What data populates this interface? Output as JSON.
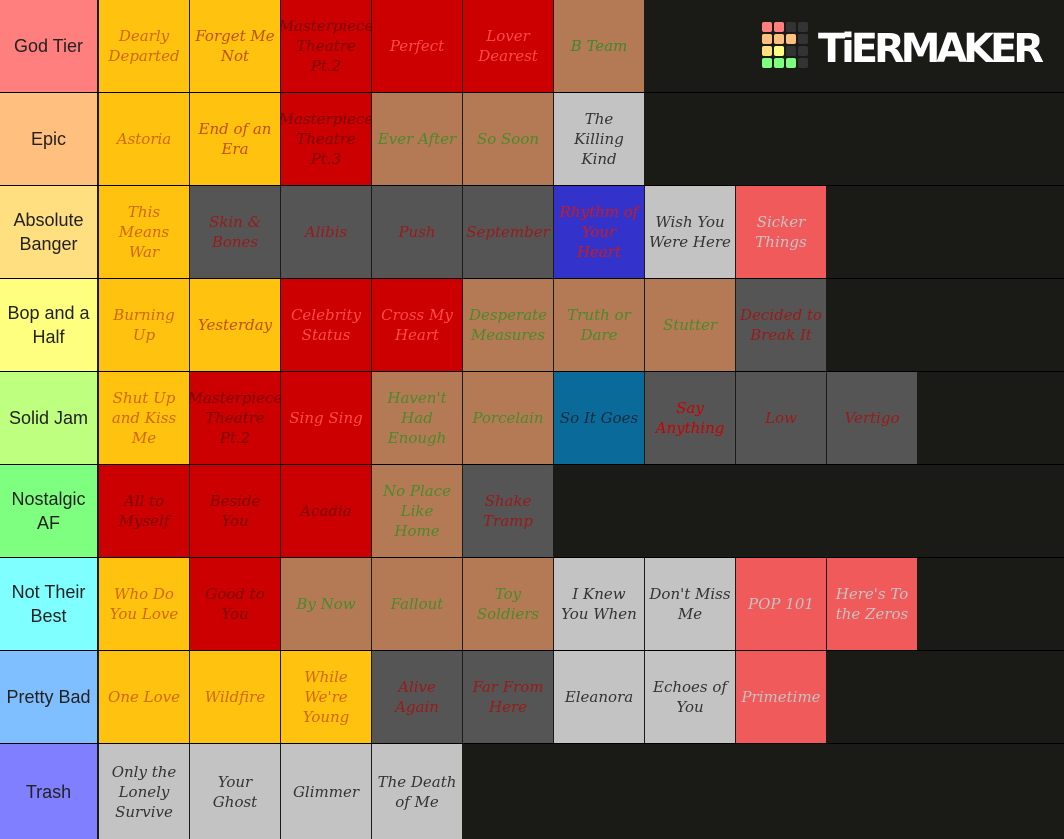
{
  "logo": "TiERMAKER",
  "tiers": [
    {
      "label": "God Tier",
      "color": "#ff7f7f",
      "items": [
        {
          "text": "Dearly Departed",
          "bg": "#ffc20e",
          "fg": "#d0680a"
        },
        {
          "text": "Forget Me Not",
          "bg": "#ffc20e",
          "fg": "#c0500a"
        },
        {
          "text": "Masterpiece Theatre Pt.2",
          "bg": "#cc0000",
          "fg": "#7a0000"
        },
        {
          "text": "Perfect",
          "bg": "#cc0000",
          "fg": "#ff4a4a"
        },
        {
          "text": "Lover Dearest",
          "bg": "#cc0000",
          "fg": "#ff4a4a"
        },
        {
          "text": "B Team",
          "bg": "#b47a55",
          "fg": "#3c8a2a"
        }
      ]
    },
    {
      "label": "Epic",
      "color": "#ffbf7f",
      "items": [
        {
          "text": "Astoria",
          "bg": "#ffc20e",
          "fg": "#d0680a"
        },
        {
          "text": "End of an Era",
          "bg": "#ffc20e",
          "fg": "#c0500a"
        },
        {
          "text": "Masterpiece Theatre Pt.3",
          "bg": "#cc0000",
          "fg": "#7a0000"
        },
        {
          "text": "Ever After",
          "bg": "#b47a55",
          "fg": "#4a8a2a"
        },
        {
          "text": "So Soon",
          "bg": "#b47a55",
          "fg": "#4a8a2a"
        },
        {
          "text": "The Killing Kind",
          "bg": "#c3c3c3",
          "fg": "#333333"
        }
      ]
    },
    {
      "label": "Absolute Banger",
      "color": "#ffdf7f",
      "items": [
        {
          "text": "This Means War",
          "bg": "#ffc20e",
          "fg": "#d0680a"
        },
        {
          "text": "Skin & Bones",
          "bg": "#555555",
          "fg": "#9a1a1a"
        },
        {
          "text": "Alibis",
          "bg": "#555555",
          "fg": "#9a1a1a"
        },
        {
          "text": "Push",
          "bg": "#555555",
          "fg": "#9a1a1a"
        },
        {
          "text": "September",
          "bg": "#555555",
          "fg": "#9a1a1a"
        },
        {
          "text": "Rhythm of Your Heart",
          "bg": "#3333cc",
          "fg": "#cc1a1a"
        },
        {
          "text": "Wish You Were Here",
          "bg": "#c3c3c3",
          "fg": "#333333"
        },
        {
          "text": "Sicker Things",
          "bg": "#f05a5a",
          "fg": "#c3c3c3"
        }
      ]
    },
    {
      "label": "Bop and a Half",
      "color": "#ffff7f",
      "items": [
        {
          "text": "Burning Up",
          "bg": "#ffc20e",
          "fg": "#d0680a"
        },
        {
          "text": "Yesterday",
          "bg": "#ffc20e",
          "fg": "#c0500a"
        },
        {
          "text": "Celebrity Status",
          "bg": "#cc0000",
          "fg": "#ff4a4a"
        },
        {
          "text": "Cross My Heart",
          "bg": "#cc0000",
          "fg": "#ff4a4a"
        },
        {
          "text": "Desperate Measures",
          "bg": "#b47a55",
          "fg": "#4a8a2a"
        },
        {
          "text": "Truth or Dare",
          "bg": "#b47a55",
          "fg": "#4a8a2a"
        },
        {
          "text": "Stutter",
          "bg": "#b47a55",
          "fg": "#4a8a2a"
        },
        {
          "text": "Decided to Break It",
          "bg": "#555555",
          "fg": "#9a1a1a"
        }
      ]
    },
    {
      "label": "Solid Jam",
      "color": "#bfff7f",
      "items": [
        {
          "text": "Shut Up and Kiss Me",
          "bg": "#ffc20e",
          "fg": "#d0680a"
        },
        {
          "text": "Masterpiece Theatre Pt.2",
          "bg": "#cc0000",
          "fg": "#7a0000"
        },
        {
          "text": "Sing Sing",
          "bg": "#cc0000",
          "fg": "#ff4a4a"
        },
        {
          "text": "Haven't Had Enough",
          "bg": "#b47a55",
          "fg": "#4a8a2a"
        },
        {
          "text": "Porcelain",
          "bg": "#b47a55",
          "fg": "#4a8a2a"
        },
        {
          "text": "So It Goes",
          "bg": "#0a6a9a",
          "fg": "#1a2a3a"
        },
        {
          "text": "Say Anything",
          "bg": "#555555",
          "fg": "#cc0000"
        },
        {
          "text": "Low",
          "bg": "#555555",
          "fg": "#9a1a1a"
        },
        {
          "text": "Vertigo",
          "bg": "#555555",
          "fg": "#9a1a1a"
        }
      ]
    },
    {
      "label": "Nostalgic AF",
      "color": "#7fff7f",
      "items": [
        {
          "text": "All to Myself",
          "bg": "#cc0000",
          "fg": "#7a0000"
        },
        {
          "text": "Beside You",
          "bg": "#cc0000",
          "fg": "#7a0000"
        },
        {
          "text": "Acadia",
          "bg": "#cc0000",
          "fg": "#7a0000"
        },
        {
          "text": "No Place Like Home",
          "bg": "#b47a55",
          "fg": "#4a8a2a"
        },
        {
          "text": "Shake Tramp",
          "bg": "#555555",
          "fg": "#9a1a1a"
        }
      ]
    },
    {
      "label": "Not Their Best",
      "color": "#7fffff",
      "items": [
        {
          "text": "Who Do You Love",
          "bg": "#ffc20e",
          "fg": "#d0680a"
        },
        {
          "text": "Good to You",
          "bg": "#cc0000",
          "fg": "#7a0000"
        },
        {
          "text": "By Now",
          "bg": "#b47a55",
          "fg": "#4a8a2a"
        },
        {
          "text": "Fallout",
          "bg": "#b47a55",
          "fg": "#4a8a2a"
        },
        {
          "text": "Toy Soldiers",
          "bg": "#b47a55",
          "fg": "#4a8a2a"
        },
        {
          "text": "I Knew You When",
          "bg": "#c3c3c3",
          "fg": "#333333"
        },
        {
          "text": "Don't Miss Me",
          "bg": "#c3c3c3",
          "fg": "#333333"
        },
        {
          "text": "POP 101",
          "bg": "#f05a5a",
          "fg": "#c3c3c3"
        },
        {
          "text": "Here's To the Zeros",
          "bg": "#f05a5a",
          "fg": "#c3c3c3"
        }
      ]
    },
    {
      "label": "Pretty Bad",
      "color": "#7fbfff",
      "items": [
        {
          "text": "One Love",
          "bg": "#ffc20e",
          "fg": "#d0680a"
        },
        {
          "text": "Wildfire",
          "bg": "#ffc20e",
          "fg": "#d0680a"
        },
        {
          "text": "While We're Young",
          "bg": "#ffc20e",
          "fg": "#d0680a"
        },
        {
          "text": "Alive Again",
          "bg": "#555555",
          "fg": "#9a1a1a"
        },
        {
          "text": "Far From Here",
          "bg": "#555555",
          "fg": "#9a1a1a"
        },
        {
          "text": "Eleanora",
          "bg": "#c3c3c3",
          "fg": "#333333"
        },
        {
          "text": "Echoes of You",
          "bg": "#c3c3c3",
          "fg": "#333333"
        },
        {
          "text": "Primetime",
          "bg": "#f05a5a",
          "fg": "#c3c3c3"
        }
      ]
    },
    {
      "label": "Trash",
      "color": "#7f7fff",
      "items": [
        {
          "text": "Only the Lonely Survive",
          "bg": "#c3c3c3",
          "fg": "#333333"
        },
        {
          "text": "Your Ghost",
          "bg": "#c3c3c3",
          "fg": "#333333"
        },
        {
          "text": "Glimmer",
          "bg": "#c3c3c3",
          "fg": "#333333"
        },
        {
          "text": "The Death of Me",
          "bg": "#c3c3c3",
          "fg": "#333333"
        }
      ]
    }
  ]
}
